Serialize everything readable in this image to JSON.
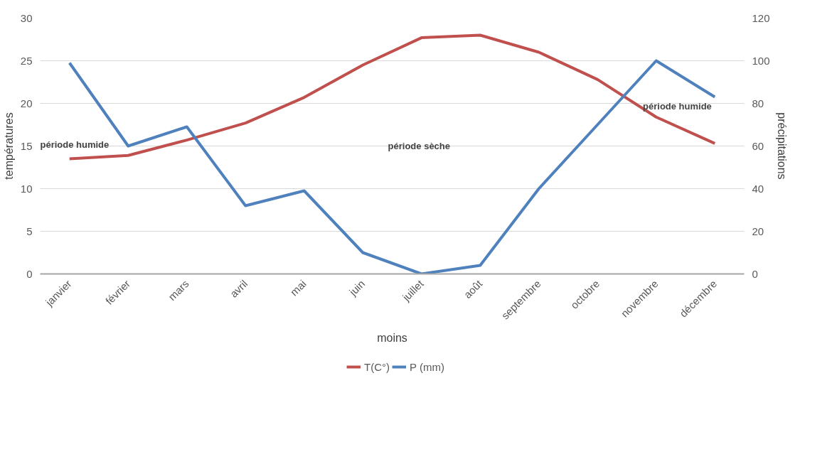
{
  "chart_data": {
    "type": "line",
    "categories": [
      "janvier",
      "février",
      "mars",
      "avril",
      "mai",
      "juin",
      "juillet",
      "août",
      "septembre",
      "octobre",
      "novembre",
      "décembre"
    ],
    "series": [
      {
        "name": "T(C°)",
        "color": "#c0504d",
        "values": [
          13.5,
          13.9,
          15.7,
          17.7,
          20.7,
          24.5,
          27.7,
          28.0,
          26.0,
          22.8,
          18.4,
          15.3
        ]
      },
      {
        "name": "P (mm)",
        "color": "#4f81bd",
        "axis": "y2",
        "values": [
          99,
          60,
          69,
          32,
          39,
          10,
          0,
          4,
          40,
          70,
          100,
          83
        ]
      }
    ],
    "xlabel": "moins",
    "ylabel": "températures",
    "y2label": "précipitations",
    "ylim": [
      0,
      30
    ],
    "yticks": [
      0,
      5,
      10,
      15,
      20,
      25,
      30
    ],
    "y2lim": [
      0,
      120
    ],
    "y2ticks": [
      0,
      20,
      40,
      60,
      80,
      100,
      120
    ],
    "grid": "y",
    "legend": "bottom",
    "marker": "none",
    "line_style": "solid",
    "annotations": [
      "période humide",
      "période  sèche",
      "période humide"
    ]
  }
}
